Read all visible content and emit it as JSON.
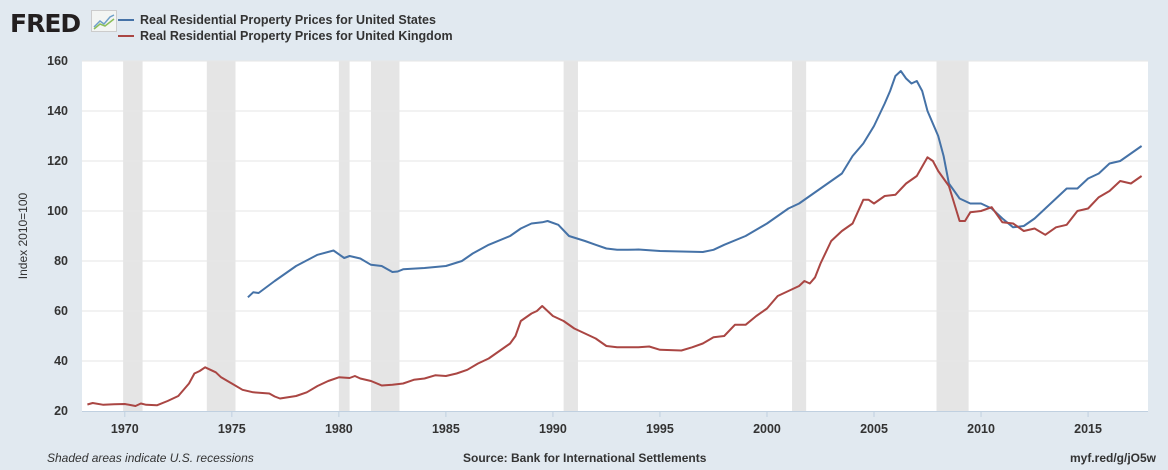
{
  "header": {
    "logo_text": "FRED"
  },
  "chart_data": {
    "type": "line",
    "title": "",
    "xlabel": "",
    "ylabel": "Index 2010=100",
    "xlim": [
      1968.0,
      2017.8
    ],
    "ylim": [
      20,
      160
    ],
    "yticks": [
      20,
      40,
      60,
      80,
      100,
      120,
      140,
      160
    ],
    "xticks": [
      1970,
      1975,
      1980,
      1985,
      1990,
      1995,
      2000,
      2005,
      2010,
      2015
    ],
    "grid": true,
    "legend_position": "top-left",
    "recessions": [
      [
        1969.92,
        1970.83
      ],
      [
        1973.83,
        1975.17
      ],
      [
        1980.0,
        1980.5
      ],
      [
        1981.5,
        1982.83
      ],
      [
        1990.5,
        1991.17
      ],
      [
        2001.17,
        2001.83
      ],
      [
        2007.92,
        2009.42
      ]
    ],
    "series": [
      {
        "name": "Real Residential Property Prices for United States",
        "color": "#4572a7",
        "x": [
          1975.75,
          1976,
          1976.25,
          1977,
          1978,
          1979,
          1979.75,
          1980.25,
          1980.5,
          1981,
          1981.5,
          1982,
          1982.5,
          1982.75,
          1983,
          1984,
          1985,
          1985.75,
          1986.25,
          1987,
          1988,
          1988.5,
          1989,
          1989.5,
          1989.75,
          1990.25,
          1990.75,
          1991.5,
          1992,
          1992.5,
          1993,
          1993.5,
          1994,
          1995,
          1996,
          1997,
          1997.5,
          1998,
          1999,
          2000,
          2001,
          2001.5,
          2002,
          2002.5,
          2003,
          2003.5,
          2004,
          2004.5,
          2005,
          2005.5,
          2005.75,
          2006,
          2006.25,
          2006.5,
          2006.75,
          2007,
          2007.25,
          2007.5,
          2008,
          2008.25,
          2008.5,
          2009,
          2009.5,
          2010,
          2010.5,
          2011,
          2011.5,
          2012,
          2012.5,
          2013,
          2013.5,
          2014,
          2014.5,
          2015,
          2015.5,
          2016,
          2016.5,
          2017,
          2017.5
        ],
        "values": [
          65.5,
          67.5,
          67.2,
          72,
          78,
          82.5,
          84.2,
          81.2,
          82,
          81,
          78.5,
          78,
          75.6,
          75.8,
          76.7,
          77.2,
          78,
          80,
          83,
          86.5,
          90,
          93,
          95,
          95.5,
          96,
          94.5,
          90,
          88,
          86.5,
          85,
          84.5,
          84.5,
          84.6,
          84,
          83.8,
          83.6,
          84.5,
          86.5,
          90,
          95,
          101,
          103,
          106,
          109,
          112,
          115,
          122,
          127,
          134,
          143,
          148,
          154,
          156,
          153,
          151,
          152,
          148,
          140,
          130,
          122,
          111,
          105,
          103,
          103,
          101,
          97,
          93.5,
          94,
          97,
          101,
          105,
          109,
          109,
          113,
          115,
          119,
          120,
          123,
          126
        ]
      },
      {
        "name": "Real Residential Property Prices for United Kingdom",
        "color": "#aa4643",
        "x": [
          1968.25,
          1968.5,
          1969,
          1969.5,
          1970,
          1970.5,
          1970.75,
          1971,
          1971.5,
          1972,
          1972.5,
          1973,
          1973.25,
          1973.5,
          1973.75,
          1974.25,
          1974.5,
          1975,
          1975.5,
          1976,
          1976.75,
          1977,
          1977.25,
          1978,
          1978.5,
          1979,
          1979.5,
          1980,
          1980.5,
          1980.75,
          1981,
          1981.5,
          1982,
          1982.5,
          1983,
          1983.5,
          1984,
          1984.5,
          1985,
          1985.5,
          1986,
          1986.5,
          1987,
          1987.5,
          1988,
          1988.25,
          1988.5,
          1989,
          1989.25,
          1989.5,
          1990,
          1990.5,
          1991,
          1991.5,
          1992,
          1992.5,
          1993,
          1993.5,
          1994,
          1994.5,
          1995,
          1996,
          1996.5,
          1997,
          1997.5,
          1998,
          1998.5,
          1999,
          1999.5,
          2000,
          2000.5,
          2001,
          2001.5,
          2001.75,
          2002,
          2002.25,
          2002.5,
          2003,
          2003.5,
          2004,
          2004.5,
          2004.75,
          2005,
          2005.5,
          2006,
          2006.5,
          2007,
          2007.5,
          2007.75,
          2008,
          2008.5,
          2009,
          2009.25,
          2009.5,
          2010,
          2010.5,
          2011,
          2011.5,
          2012,
          2012.5,
          2013,
          2013.5,
          2014,
          2014.5,
          2015,
          2015.5,
          2016,
          2016.5,
          2017,
          2017.5
        ],
        "values": [
          22.6,
          23.2,
          22.5,
          22.7,
          22.8,
          22,
          23,
          22.5,
          22.3,
          24,
          26,
          31,
          35,
          36,
          37.5,
          35.5,
          33.5,
          31,
          28.5,
          27.5,
          27,
          25.8,
          25,
          26,
          27.5,
          30,
          32,
          33.5,
          33.2,
          34,
          33,
          32,
          30.2,
          30.5,
          31,
          32.5,
          33,
          34.3,
          34,
          35,
          36.5,
          39,
          41,
          44,
          47,
          50,
          56,
          59,
          60,
          62,
          58,
          56,
          53,
          51,
          49,
          46,
          45.5,
          45.5,
          45.5,
          45.8,
          44.5,
          44.2,
          45.5,
          47,
          49.5,
          50,
          54.5,
          54.5,
          58,
          61,
          66,
          68,
          70,
          72,
          71,
          73.5,
          79,
          88,
          92,
          95,
          104.5,
          104.5,
          103,
          106,
          106.5,
          111,
          114,
          121.5,
          120,
          116,
          110,
          96,
          96,
          99.5,
          100,
          101.5,
          95.5,
          95,
          92,
          93,
          90.5,
          93.5,
          94.5,
          100,
          101,
          105.5,
          108,
          112,
          111,
          114
        ]
      }
    ]
  },
  "footer": {
    "note": "Shaded areas indicate U.S. recessions",
    "source": "Source: Bank for International Settlements",
    "link": "myf.red/g/jO5w"
  }
}
